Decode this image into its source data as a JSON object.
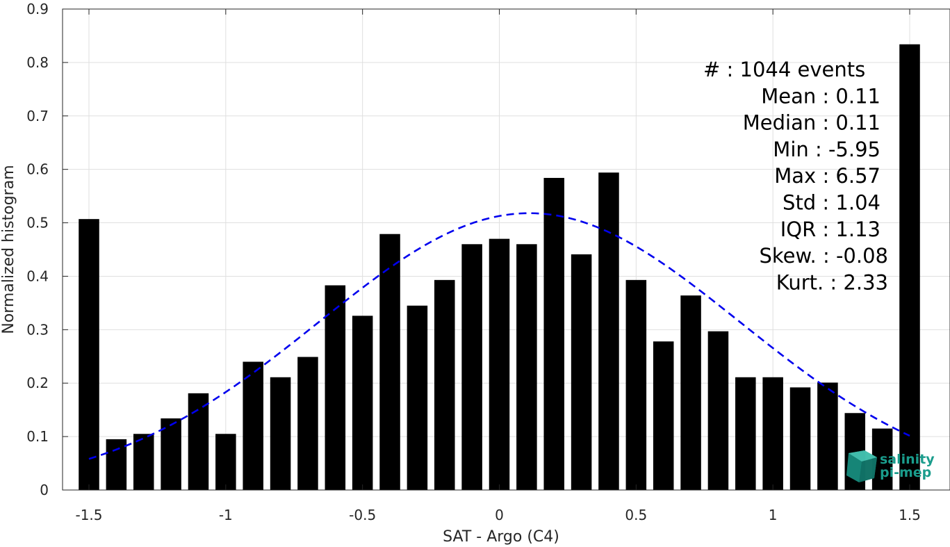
{
  "chart_data": {
    "type": "bar",
    "xlabel": "SAT - Argo (C4)",
    "ylabel": "Normalized histogram",
    "xlim": [
      -1.55,
      1.55
    ],
    "ylim": [
      0,
      0.9
    ],
    "grid": true,
    "x_ticks": [
      -1.5,
      -1,
      -0.5,
      0,
      0.5,
      1,
      1.5
    ],
    "x_tick_labels": [
      "-1.5",
      "-1",
      "-0.5",
      "0",
      "0.5",
      "1",
      "1.5"
    ],
    "y_ticks": [
      0,
      0.1,
      0.2,
      0.3,
      0.4,
      0.5,
      0.6,
      0.7,
      0.8,
      0.9
    ],
    "y_tick_labels": [
      "0",
      "0.1",
      "0.2",
      "0.3",
      "0.4",
      "0.5",
      "0.6",
      "0.7",
      "0.8",
      "0.9"
    ],
    "bar_color": "#000000",
    "bar_width": 0.075,
    "bars": [
      {
        "x": -1.5,
        "y": 0.507
      },
      {
        "x": -1.4,
        "y": 0.095
      },
      {
        "x": -1.3,
        "y": 0.105
      },
      {
        "x": -1.2,
        "y": 0.134
      },
      {
        "x": -1.1,
        "y": 0.181
      },
      {
        "x": -1.0,
        "y": 0.105
      },
      {
        "x": -0.9,
        "y": 0.24
      },
      {
        "x": -0.8,
        "y": 0.211
      },
      {
        "x": -0.7,
        "y": 0.249
      },
      {
        "x": -0.6,
        "y": 0.383
      },
      {
        "x": -0.5,
        "y": 0.326
      },
      {
        "x": -0.4,
        "y": 0.479
      },
      {
        "x": -0.3,
        "y": 0.345
      },
      {
        "x": -0.2,
        "y": 0.393
      },
      {
        "x": -0.1,
        "y": 0.46
      },
      {
        "x": 0.0,
        "y": 0.47
      },
      {
        "x": 0.1,
        "y": 0.46
      },
      {
        "x": 0.2,
        "y": 0.584
      },
      {
        "x": 0.3,
        "y": 0.441
      },
      {
        "x": 0.4,
        "y": 0.594
      },
      {
        "x": 0.5,
        "y": 0.393
      },
      {
        "x": 0.6,
        "y": 0.278
      },
      {
        "x": 0.7,
        "y": 0.364
      },
      {
        "x": 0.8,
        "y": 0.297
      },
      {
        "x": 0.9,
        "y": 0.211
      },
      {
        "x": 1.0,
        "y": 0.211
      },
      {
        "x": 1.1,
        "y": 0.192
      },
      {
        "x": 1.2,
        "y": 0.201
      },
      {
        "x": 1.3,
        "y": 0.144
      },
      {
        "x": 1.4,
        "y": 0.115
      },
      {
        "x": 1.5,
        "y": 0.834
      }
    ],
    "fit_curve": {
      "type": "gaussian",
      "mean": 0.11,
      "std": 0.77,
      "peak": 0.518,
      "x_range": [
        -1.5,
        1.5
      ],
      "color": "#0000ee",
      "dashed": true
    }
  },
  "stats": [
    {
      "text": "#  : 1044 events",
      "align": "start"
    },
    {
      "text": "Mean : 0.11",
      "align": "end"
    },
    {
      "text": "Median : 0.11",
      "align": "end"
    },
    {
      "text": "Min : -5.95",
      "align": "end"
    },
    {
      "text": "Max : 6.57",
      "align": "end"
    },
    {
      "text": "Std : 1.04",
      "align": "end"
    },
    {
      "text": "IQR : 1.13",
      "align": "end"
    },
    {
      "text": "Skew. : -0.08",
      "align": "end"
    },
    {
      "text": "Kurt. : 2.33",
      "align": "end"
    }
  ],
  "logo": {
    "line1": "salinity",
    "line2": "pi-mep",
    "color": "#1a9c8c"
  }
}
